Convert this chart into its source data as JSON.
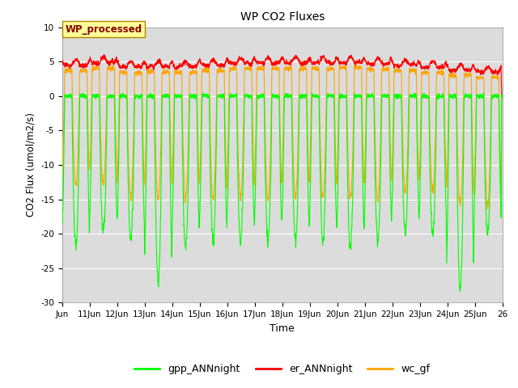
{
  "title": "WP CO2 Fluxes",
  "xlabel": "Time",
  "ylabel": "CO2 Flux (umol/m2/s)",
  "xlim_days": [
    10,
    26
  ],
  "ylim": [
    -30,
    10
  ],
  "yticks": [
    -30,
    -25,
    -20,
    -15,
    -10,
    -5,
    0,
    5,
    10
  ],
  "xtick_labels": [
    "Jun",
    "11Jun",
    "12Jun",
    "13Jun",
    "14Jun",
    "15Jun",
    "16Jun",
    "17Jun",
    "18Jun",
    "19Jun",
    "20Jun",
    "21Jun",
    "22Jun",
    "23Jun",
    "24Jun",
    "25Jun",
    "26"
  ],
  "xtick_positions": [
    10,
    11,
    12,
    13,
    14,
    15,
    16,
    17,
    18,
    19,
    20,
    21,
    22,
    23,
    24,
    25,
    26
  ],
  "color_gpp": "#00FF00",
  "color_er": "#FF0000",
  "color_wc": "#FFA500",
  "annotation_text": "WP_processed",
  "annotation_color": "#8B0000",
  "annotation_bg": "#FFFF99",
  "bg_color": "#DCDCDC",
  "fig_bg": "#FFFFFF",
  "legend_labels": [
    "gpp_ANNnight",
    "er_ANNnight",
    "wc_gf"
  ],
  "n_points": 3000,
  "num_days": 16
}
